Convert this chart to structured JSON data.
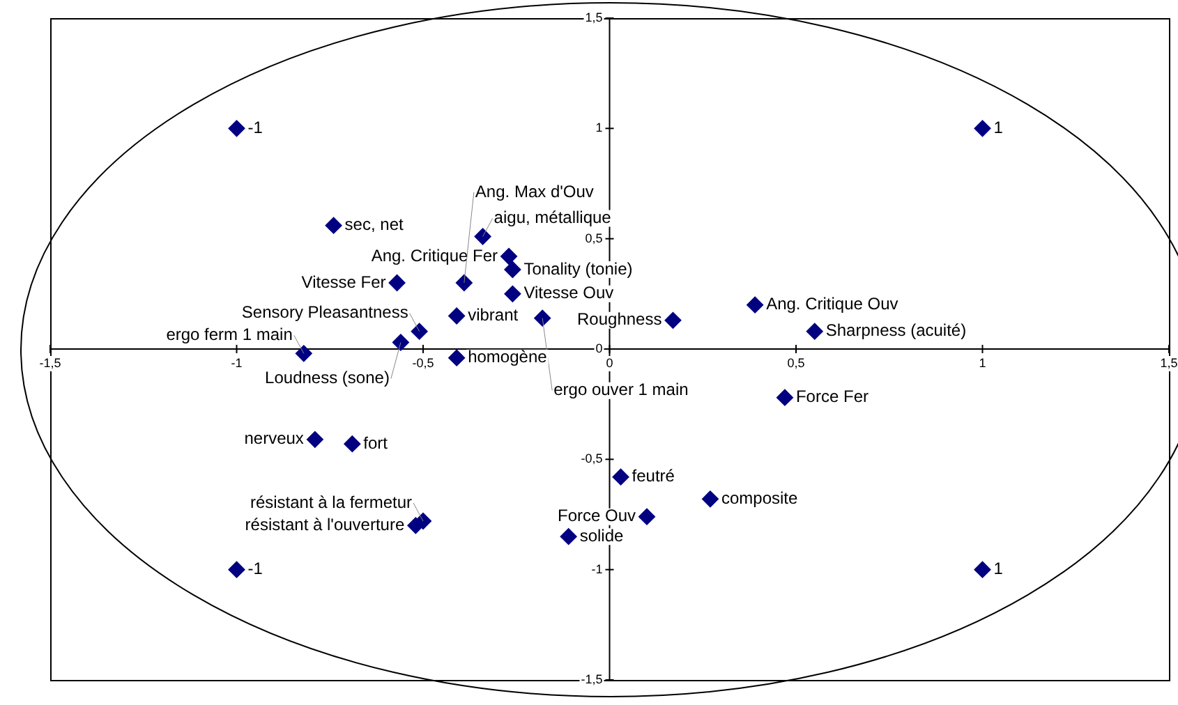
{
  "chart_data": {
    "type": "scatter",
    "marker": "diamond",
    "grid": false,
    "legend": false,
    "xlim": [
      -1.5,
      1.5
    ],
    "ylim": [
      -1.5,
      1.5
    ],
    "xticks": [
      {
        "value": -1.5,
        "label": "-1,5"
      },
      -1,
      {
        "value": -0.5,
        "label": "-0,5"
      },
      0,
      {
        "value": 0.5,
        "label": "0,5"
      },
      1,
      {
        "value": 1.5,
        "label": "1,5"
      }
    ],
    "yticks": [
      {
        "value": -1.5,
        "label": "-1,5"
      },
      -1,
      {
        "value": -0.5,
        "label": "-0,5"
      },
      0,
      {
        "value": 0.5,
        "label": "0,5"
      },
      1,
      {
        "value": 1.5,
        "label": "1,5"
      }
    ],
    "series": [
      {
        "color": "#000080",
        "x": [
          -1,
          1,
          -1,
          1,
          -0.74,
          -0.34,
          -0.27,
          -0.26,
          -0.57,
          -0.39,
          -0.26,
          -0.41,
          -0.18,
          -0.51,
          -0.56,
          -0.82,
          -0.41,
          0.17,
          0.39,
          0.55,
          0.47,
          -0.79,
          -0.69,
          0.03,
          0.27,
          0.1,
          -0.52,
          -0.5,
          -0.11
        ],
        "values": [
          1,
          1,
          -1,
          -1,
          0.56,
          0.51,
          0.42,
          0.36,
          0.3,
          0.3,
          0.25,
          0.15,
          0.14,
          0.08,
          0.03,
          -0.02,
          -0.04,
          0.13,
          0.2,
          0.08,
          -0.22,
          -0.41,
          -0.43,
          -0.58,
          -0.68,
          -0.76,
          -0.8,
          -0.78,
          -0.85
        ]
      }
    ],
    "annotations": [
      {
        "text": "-1",
        "x": -1,
        "y": 1
      },
      {
        "text": "1",
        "x": 1,
        "y": 1
      },
      {
        "text": "-1",
        "x": -1,
        "y": -1
      },
      {
        "text": "1",
        "x": 1,
        "y": -1
      },
      {
        "text": "sec, net",
        "x": -0.74,
        "y": 0.56
      },
      {
        "text": "aigu, métallique",
        "x": -0.34,
        "y": 0.51
      },
      {
        "text": "Ang. Critique Fer",
        "x": -0.27,
        "y": 0.42
      },
      {
        "text": "Tonality (tonie)",
        "x": -0.26,
        "y": 0.36
      },
      {
        "text": "Vitesse Fer",
        "x": -0.57,
        "y": 0.3
      },
      {
        "text": "Ang. Max d'Ouv",
        "x": -0.39,
        "y": 0.3
      },
      {
        "text": "Vitesse Ouv",
        "x": -0.26,
        "y": 0.25
      },
      {
        "text": "vibrant",
        "x": -0.41,
        "y": 0.15
      },
      {
        "text": "ergo ouver 1 main",
        "x": -0.18,
        "y": 0.14
      },
      {
        "text": "Sensory Pleasantness",
        "x": -0.51,
        "y": 0.08
      },
      {
        "text": "Loudness (sone)",
        "x": -0.56,
        "y": 0.03
      },
      {
        "text": "ergo ferm 1 main",
        "x": -0.82,
        "y": -0.02
      },
      {
        "text": "homogène",
        "x": -0.41,
        "y": -0.04
      },
      {
        "text": "Roughness",
        "x": 0.17,
        "y": 0.13
      },
      {
        "text": "Ang. Critique Ouv",
        "x": 0.39,
        "y": 0.2
      },
      {
        "text": "Sharpness (acuité)",
        "x": 0.55,
        "y": 0.08
      },
      {
        "text": "Force Fer",
        "x": 0.47,
        "y": -0.22
      },
      {
        "text": "nerveux",
        "x": -0.79,
        "y": -0.41
      },
      {
        "text": "fort",
        "x": -0.69,
        "y": -0.43
      },
      {
        "text": "feutré",
        "x": 0.03,
        "y": -0.58
      },
      {
        "text": "composite",
        "x": 0.27,
        "y": -0.68
      },
      {
        "text": "Force Ouv",
        "x": 0.1,
        "y": -0.76
      },
      {
        "text": "résistant à l'ouverture",
        "x": -0.52,
        "y": -0.8
      },
      {
        "text": "résistant à la fermetur",
        "x": -0.5,
        "y": -0.78
      },
      {
        "text": "solide",
        "x": -0.11,
        "y": -0.85
      }
    ]
  }
}
